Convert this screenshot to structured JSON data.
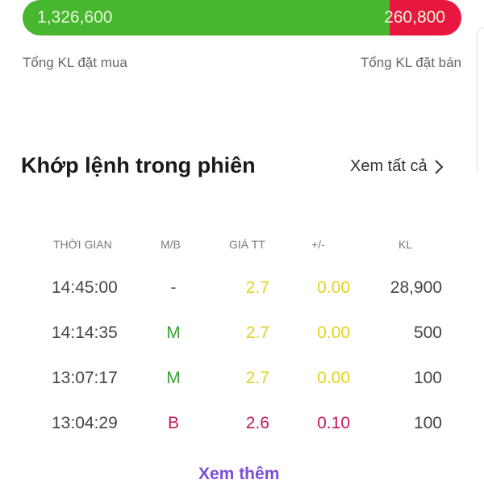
{
  "summary": {
    "buy_total": "1,326,600",
    "sell_total": "260,800",
    "buy_label": "Tổng KL đặt mua",
    "sell_label": "Tổng KL đặt bán",
    "buy_fraction": 0.8357,
    "colors": {
      "buy": "#46b72e",
      "sell": "#e8173f"
    }
  },
  "section": {
    "title": "Khớp lệnh trong phiên",
    "see_all": "Xem tất cả",
    "see_all_icon": "chevron-right-icon"
  },
  "table": {
    "headers": [
      "THỜI GIAN",
      "M/B",
      "GIÁ TT",
      "+/-",
      "KL"
    ],
    "rows": [
      [
        "14:45:00",
        "-",
        "2.7",
        "0.00",
        "28,900"
      ],
      [
        "14:14:35",
        "M",
        "2.7",
        "0.00",
        "500"
      ],
      [
        "13:07:17",
        "M",
        "2.7",
        "0.00",
        "100"
      ],
      [
        "13:04:29",
        "B",
        "2.6",
        "0.10",
        "100"
      ]
    ],
    "row_colors": [
      "#e3d21c",
      "#e3d21c",
      "#e3d21c",
      "#c2185b"
    ],
    "side_colors": {
      "-": "#555",
      "M": "#3aa335",
      "B": "#c2185b"
    }
  },
  "more": "Xem thêm"
}
